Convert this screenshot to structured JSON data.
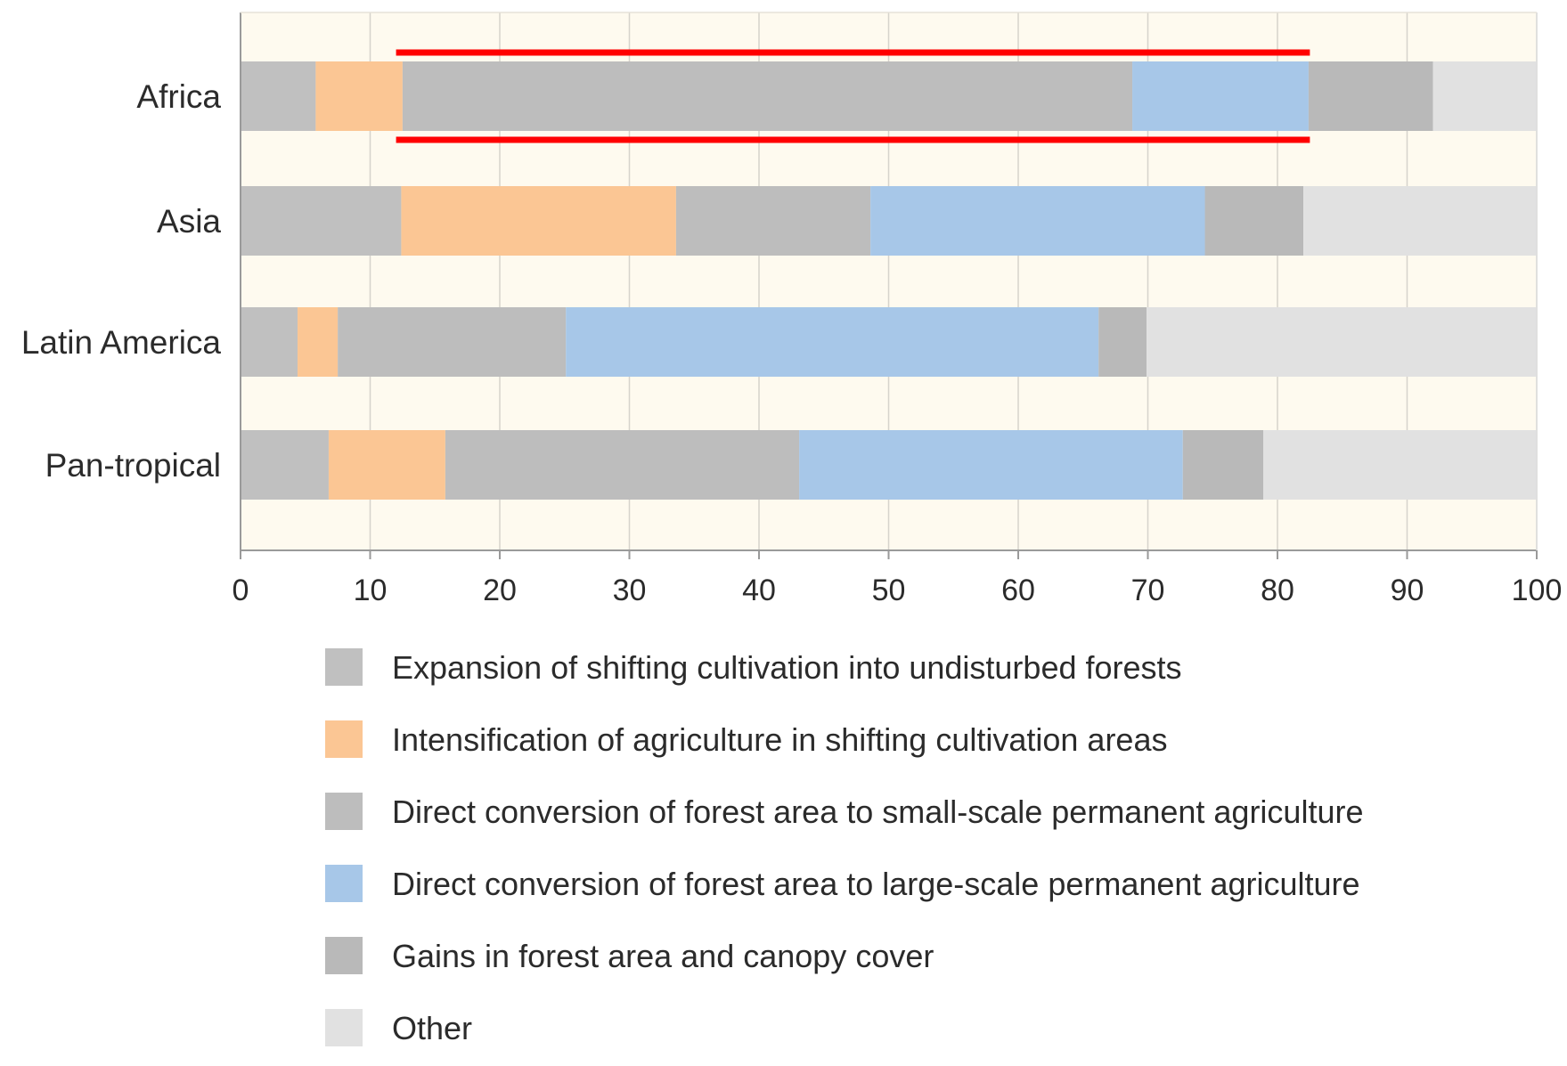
{
  "chart_data": {
    "type": "bar",
    "orientation": "horizontal",
    "stacked": true,
    "title": "",
    "xlabel": "",
    "ylabel": "",
    "xlim": [
      0,
      100
    ],
    "x_ticks": [
      0,
      10,
      20,
      30,
      40,
      50,
      60,
      70,
      80,
      90,
      100
    ],
    "grid": true,
    "legend_position": "bottom",
    "categories": [
      "Africa",
      "Asia",
      "Latin America",
      "Pan-tropical"
    ],
    "series": [
      {
        "name": "Expansion of shifting cultivation into undisturbed forests",
        "color": "#c0c0c0",
        "values": [
          5.8,
          12.4,
          4.4,
          6.8
        ]
      },
      {
        "name": "Intensification of agriculture in shifting cultivation areas",
        "color": "#fbc694",
        "values": [
          6.7,
          21.2,
          3.1,
          9.0
        ]
      },
      {
        "name": "Direct conversion of forest area to small-scale permanent agriculture",
        "color": "#bdbdbd",
        "values": [
          56.3,
          15.0,
          17.6,
          27.3
        ]
      },
      {
        "name": "Direct conversion of forest area to large-scale permanent agriculture",
        "color": "#a7c7e8",
        "values": [
          13.6,
          25.8,
          41.1,
          29.6
        ]
      },
      {
        "name": "Gains in forest area and canopy cover",
        "color": "#b9b9b9",
        "values": [
          9.6,
          7.6,
          3.7,
          6.2
        ]
      },
      {
        "name": "Other",
        "color": "#e1e1e1",
        "values": [
          8.0,
          18.0,
          30.1,
          21.1
        ]
      }
    ],
    "annotations": [
      {
        "type": "highlight-box",
        "category": "Africa",
        "x_range": [
          12.0,
          82.5
        ],
        "color": "#ff0000"
      }
    ]
  }
}
